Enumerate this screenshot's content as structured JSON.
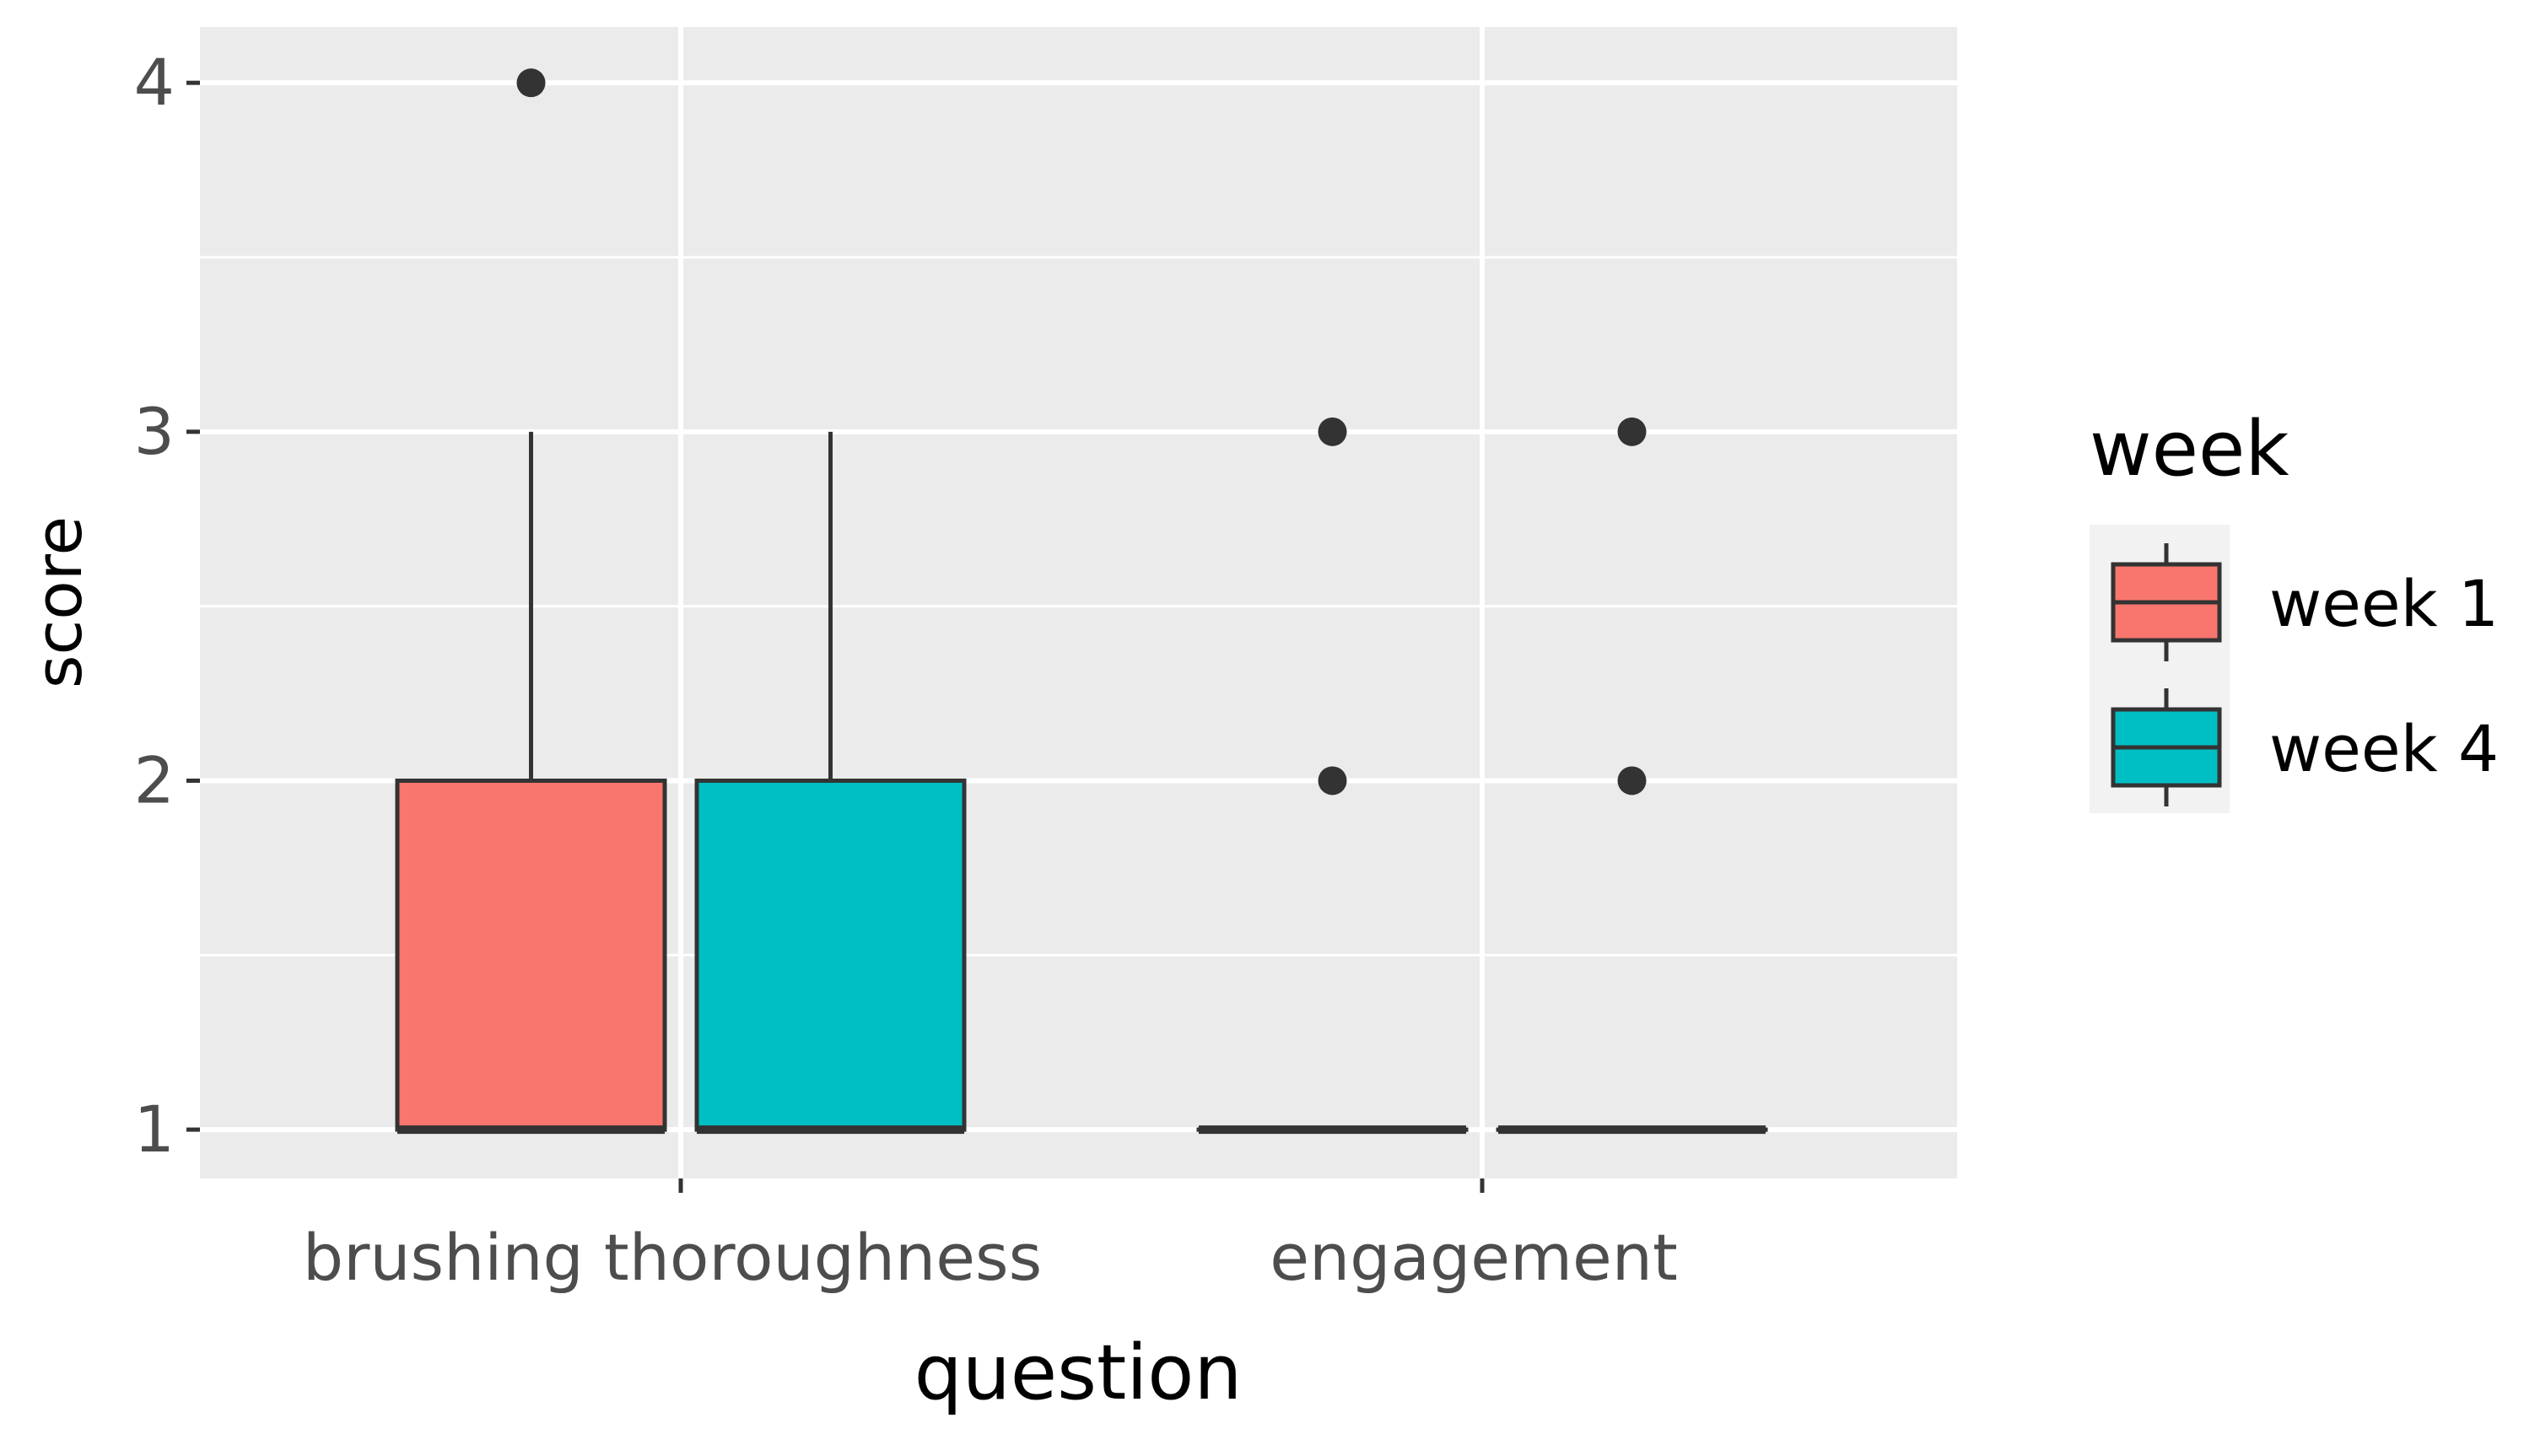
{
  "chart_data": {
    "type": "boxplot",
    "xlabel": "question",
    "ylabel": "score",
    "categories": [
      "brushing thoroughness",
      "engagement"
    ],
    "y_ticks": [
      1,
      2,
      3,
      4
    ],
    "ylim": [
      0.86,
      4.16
    ],
    "grid": true,
    "legend": {
      "title": "week",
      "position": "right",
      "entries": [
        "week 1",
        "week 4"
      ]
    },
    "series": [
      {
        "name": "week 1",
        "color": "#F8766D",
        "boxes": [
          {
            "category": "brushing thoroughness",
            "min": 1,
            "q1": 1,
            "median": 1,
            "q3": 2,
            "max": 3,
            "outliers": [
              4
            ]
          },
          {
            "category": "engagement",
            "min": 1,
            "q1": 1,
            "median": 1,
            "q3": 1,
            "max": 1,
            "outliers": [
              2,
              3
            ]
          }
        ]
      },
      {
        "name": "week 4",
        "color": "#00BFC4",
        "boxes": [
          {
            "category": "brushing thoroughness",
            "min": 1,
            "q1": 1,
            "median": 1,
            "q3": 2,
            "max": 3,
            "outliers": []
          },
          {
            "category": "engagement",
            "min": 1,
            "q1": 1,
            "median": 1,
            "q3": 1,
            "max": 1,
            "outliers": [
              2,
              3
            ]
          }
        ]
      }
    ],
    "colors": {
      "panel_background": "#EBEBEB",
      "grid_line": "#FFFFFF",
      "box_outline": "#333333",
      "tick_label": "#4D4D4D"
    }
  }
}
